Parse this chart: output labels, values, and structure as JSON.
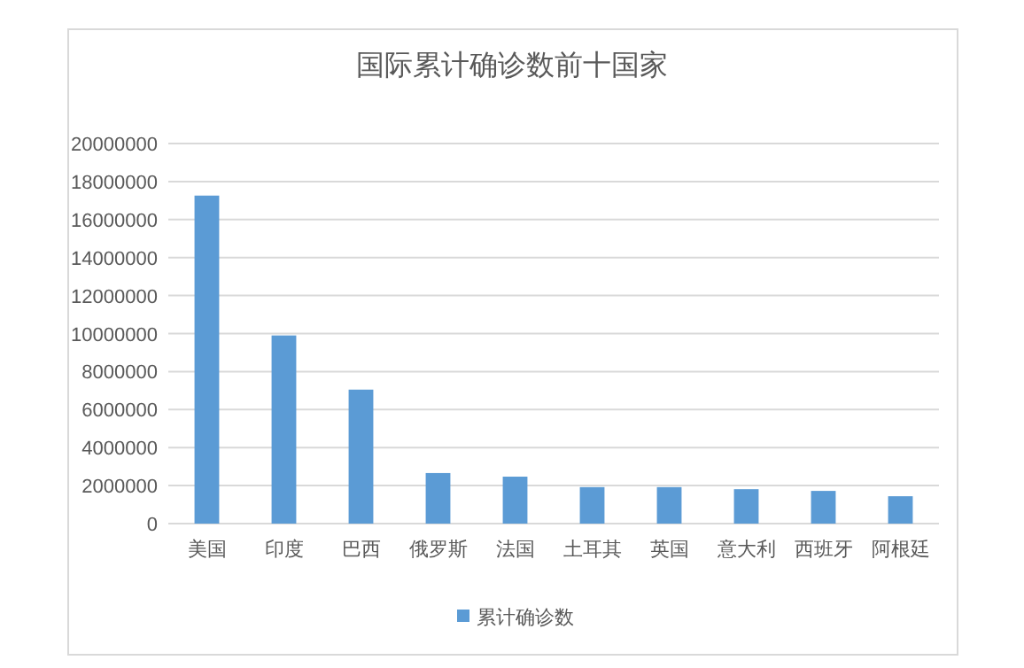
{
  "chart_data": {
    "type": "bar",
    "title": "国际累计确诊数前十国家",
    "categories": [
      "美国",
      "印度",
      "巴西",
      "俄罗斯",
      "法国",
      "土耳其",
      "英国",
      "意大利",
      "西班牙",
      "阿根廷"
    ],
    "series": [
      {
        "name": "累计确诊数",
        "color": "#5b9bd5",
        "values": [
          17260000,
          9900000,
          7050000,
          2660000,
          2470000,
          1920000,
          1920000,
          1810000,
          1720000,
          1440000
        ]
      }
    ],
    "ylim": [
      0,
      20000000
    ],
    "yticks": [
      0,
      2000000,
      4000000,
      6000000,
      8000000,
      10000000,
      12000000,
      14000000,
      16000000,
      18000000,
      20000000
    ],
    "grid": "y",
    "legend": "bottom"
  }
}
